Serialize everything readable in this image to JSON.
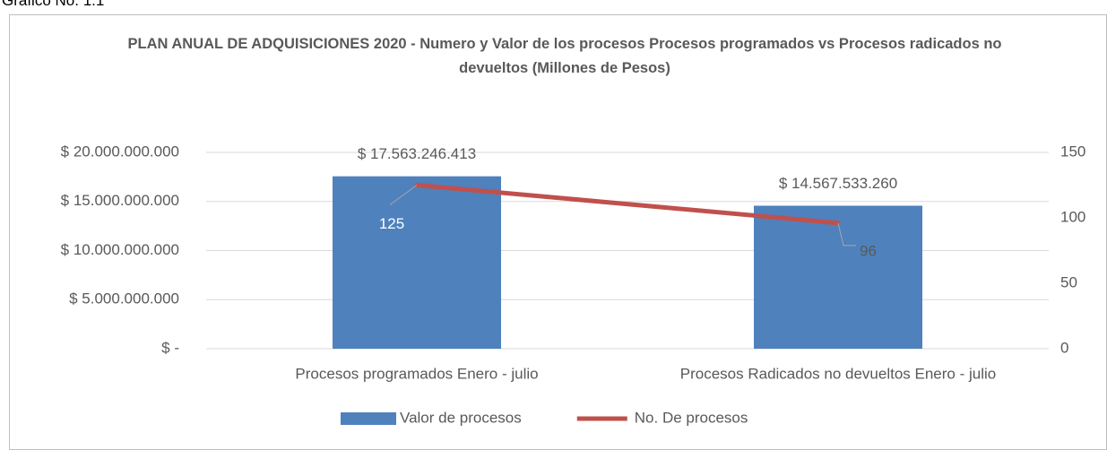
{
  "caption": "Gráfico No. 1.1",
  "chart_data": {
    "type": "combo",
    "title": "PLAN ANUAL DE ADQUISICIONES 2020 - Numero y Valor de los procesos Procesos programados vs Procesos radicados no devueltos (Millones de Pesos)",
    "categories": [
      "Procesos programados Enero - julio",
      "Procesos Radicados no devueltos Enero - julio"
    ],
    "series": [
      {
        "name": "Valor de procesos",
        "type": "bar",
        "color": "#4f81bd",
        "values": [
          17563246413,
          14567533260
        ],
        "value_labels": [
          "$ 17.563.246.413",
          "$ 14.567.533.260"
        ]
      },
      {
        "name": "No. De procesos",
        "type": "line",
        "axis": "y2",
        "color": "#c0504d",
        "values": [
          125,
          96
        ]
      }
    ],
    "ylim": [
      0,
      20000000000
    ],
    "yticks": [
      {
        "value": 0,
        "label": "$ -"
      },
      {
        "value": 5000000000,
        "label": "$ 5.000.000.000"
      },
      {
        "value": 10000000000,
        "label": "$ 10.000.000.000"
      },
      {
        "value": 15000000000,
        "label": "$ 15.000.000.000"
      },
      {
        "value": 20000000000,
        "label": "$ 20.000.000.000"
      }
    ],
    "y2lim": [
      0,
      150
    ],
    "y2ticks": [
      0,
      50,
      100,
      150
    ],
    "grid": true,
    "legend": "bottom"
  }
}
